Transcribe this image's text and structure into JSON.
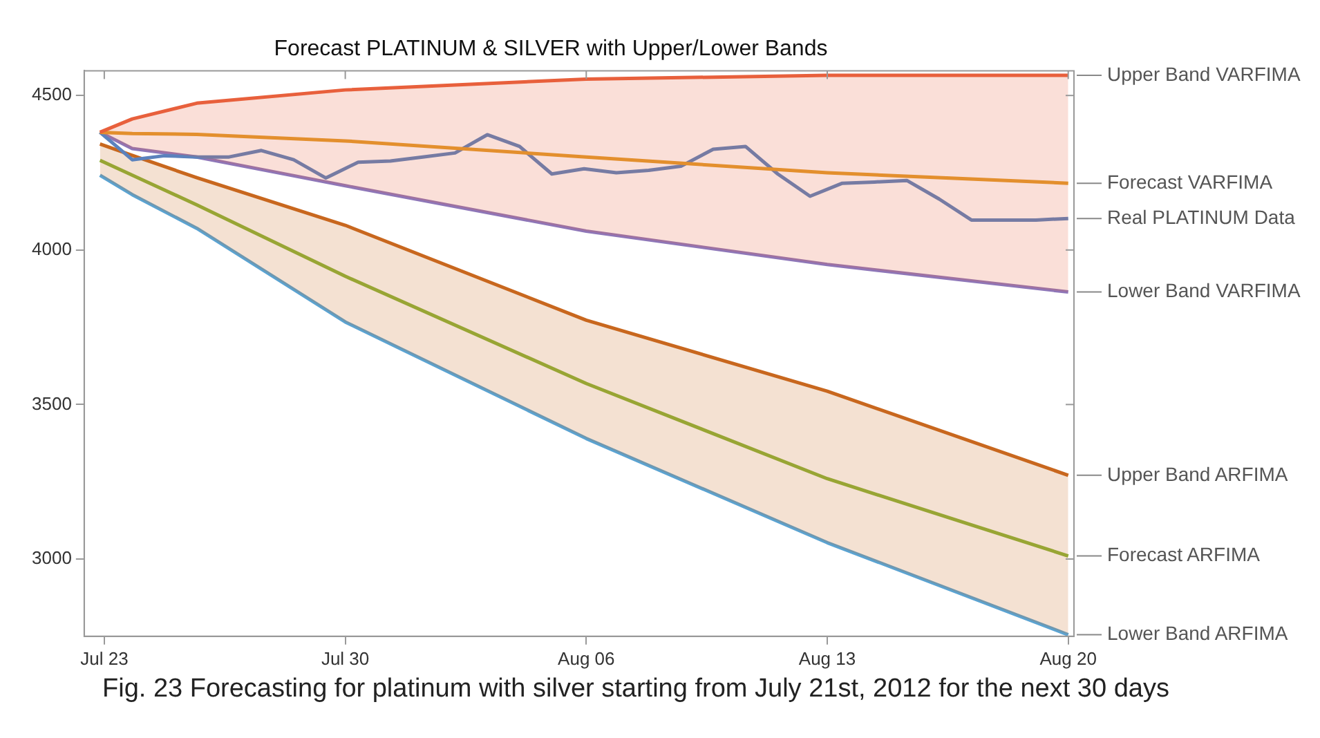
{
  "chart_data": {
    "type": "line",
    "title": "Forecast PLATINUM & SILVER with Upper/Lower Bands",
    "x": [
      "2012-07-22T21:00",
      "2012-07-23T19:30",
      "2012-07-25T16:30",
      "2012-07-30T00:00",
      "2012-08-06T00:00",
      "2012-08-13T00:00",
      "2012-08-20T00:00"
    ],
    "xlim": [
      "2012-07-22T10:00",
      "2012-08-20T04:00"
    ],
    "xticks": [
      {
        "value": "2012-07-23",
        "label": "Jul 23"
      },
      {
        "value": "2012-07-30",
        "label": "Jul 30"
      },
      {
        "value": "2012-08-06",
        "label": "Aug 06"
      },
      {
        "value": "2012-08-13",
        "label": "Aug 13"
      },
      {
        "value": "2012-08-20",
        "label": "Aug 20"
      }
    ],
    "ylim": [
      2750,
      4580
    ],
    "yticks": [
      3000,
      3500,
      4000,
      4500
    ],
    "grid": false,
    "series": [
      {
        "name": "Upper Band VARFIMA",
        "type": "area",
        "color": "#e8603c",
        "values": [
          4381,
          4424,
          4475,
          4518,
          4553,
          4565,
          4565
        ]
      },
      {
        "name": "Forecast VARFIMA",
        "color": "#e39b2a",
        "values": [
          4381,
          4377,
          4374,
          4353,
          4301,
          4250,
          4216
        ]
      },
      {
        "name": "Real PLATINUM Data",
        "color": "#5b82bd",
        "x": [
          "2012-07-22T21:00",
          "2012-07-23T19:30",
          "2012-07-24T18:00",
          "2012-07-25T16:30",
          "2012-07-26T15:00",
          "2012-07-27T13:30",
          "2012-07-28T12:00",
          "2012-07-29T10:30",
          "2012-07-30T09:00",
          "2012-07-31T07:30",
          "2012-08-01T06:00",
          "2012-08-02T04:30",
          "2012-08-03T03:00",
          "2012-08-04T01:30",
          "2012-08-05T00:00",
          "2012-08-05T22:30",
          "2012-08-06T21:00",
          "2012-08-07T19:30",
          "2012-08-08T18:00",
          "2012-08-09T16:30",
          "2012-08-10T15:00",
          "2012-08-11T13:30",
          "2012-08-12T12:00",
          "2012-08-13T10:30",
          "2012-08-14T09:00",
          "2012-08-15T07:30",
          "2012-08-16T06:00",
          "2012-08-17T04:30",
          "2012-08-18T03:00",
          "2012-08-19T01:30",
          "2012-08-20T00:00"
        ],
        "values": [
          4381,
          4292,
          4305,
          4301,
          4301,
          4322,
          4292,
          4233,
          4284,
          4288,
          4301,
          4314,
          4373,
          4335,
          4246,
          4263,
          4250,
          4258,
          4271,
          4326,
          4335,
          4246,
          4174,
          4216,
          4220,
          4225,
          4165,
          4097,
          4097,
          4097,
          4102
        ]
      },
      {
        "name": "Lower Band VARFIMA",
        "color": "#8e76b8",
        "values": [
          4381,
          4328,
          4301,
          4208,
          4061,
          3953,
          3864
        ]
      },
      {
        "name": "Upper Band ARFIMA",
        "type": "area",
        "color": "#c8671e",
        "values": [
          4343,
          4306,
          4234,
          4080,
          3773,
          3543,
          3271
        ]
      },
      {
        "name": "Forecast ARFIMA",
        "color": "#8db43a",
        "values": [
          4290,
          4242,
          4146,
          3915,
          3568,
          3260,
          3010
        ]
      },
      {
        "name": "Lower Band ARFIMA",
        "color": "#5aa3d2",
        "values": [
          4242,
          4179,
          4070,
          3767,
          3390,
          3053,
          2755
        ]
      }
    ],
    "annotations": [
      "Fig. 23 Forecasting for platinum with silver starting from July 21st, 2012 for the next 30 days"
    ]
  }
}
